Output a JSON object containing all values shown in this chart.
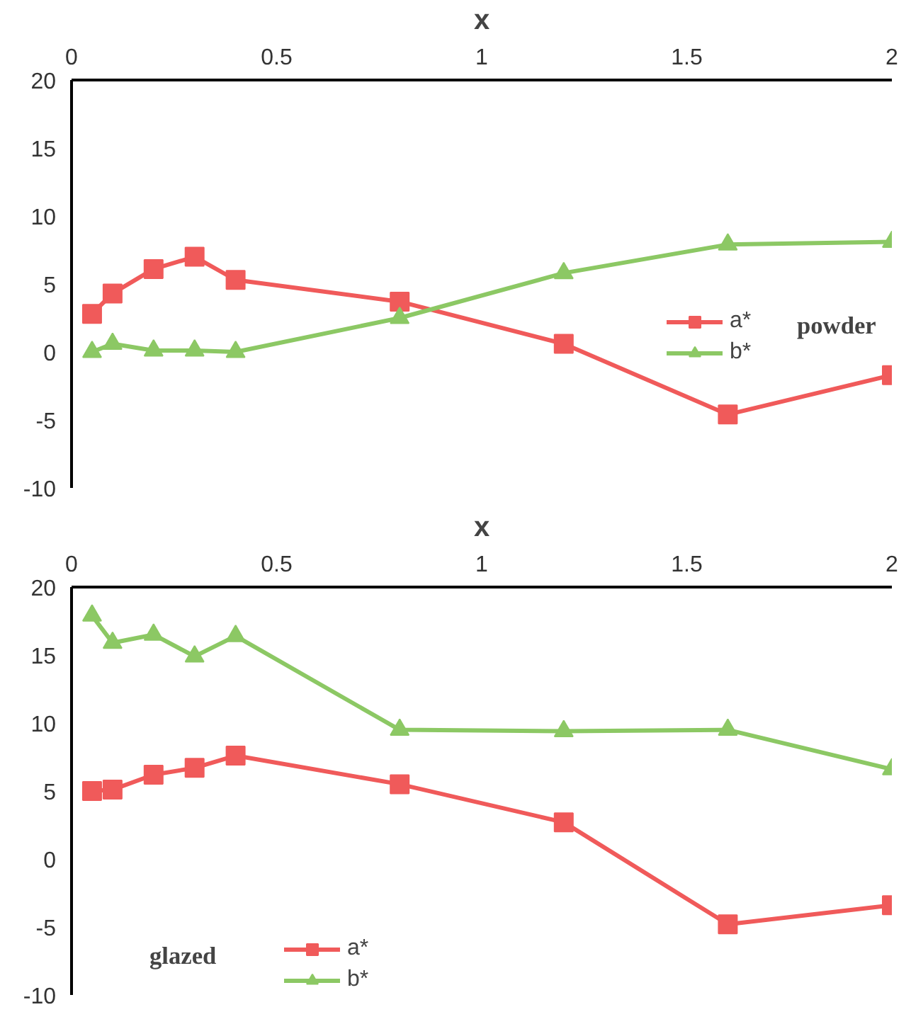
{
  "chart_data": [
    {
      "type": "line",
      "xlabel": "x",
      "x": [
        0.05,
        0.1,
        0.2,
        0.3,
        0.4,
        0.8,
        1.2,
        1.6,
        2.0
      ],
      "xlim": [
        0,
        2
      ],
      "xticks": [
        0,
        0.5,
        1,
        1.5,
        2
      ],
      "ylim": [
        -10,
        20
      ],
      "yticks": [
        -10,
        -5,
        0,
        5,
        10,
        15,
        20
      ],
      "series": [
        {
          "name": "a*",
          "color": "#f05a5a",
          "marker": "square",
          "values": [
            2.8,
            4.3,
            6.1,
            7.0,
            5.3,
            3.7,
            0.6,
            -4.6,
            -1.7
          ]
        },
        {
          "name": "b*",
          "color": "#8cc864",
          "marker": "triangle",
          "values": [
            0.0,
            0.6,
            0.1,
            0.1,
            0.0,
            2.5,
            5.8,
            7.9,
            8.1
          ]
        }
      ],
      "grid": false,
      "legend": "right",
      "annotations": [
        "powder"
      ]
    },
    {
      "type": "line",
      "xlabel": "x",
      "x": [
        0.05,
        0.1,
        0.2,
        0.3,
        0.4,
        0.8,
        1.2,
        1.6,
        2.0
      ],
      "xlim": [
        0,
        2
      ],
      "xticks": [
        0,
        0.5,
        1,
        1.5,
        2
      ],
      "ylim": [
        -10,
        20
      ],
      "yticks": [
        -10,
        -5,
        0,
        5,
        10,
        15,
        20
      ],
      "series": [
        {
          "name": "a*",
          "color": "#f05a5a",
          "marker": "square",
          "values": [
            5.0,
            5.1,
            6.2,
            6.7,
            7.6,
            5.5,
            2.7,
            -4.8,
            -3.4
          ]
        },
        {
          "name": "b*",
          "color": "#8cc864",
          "marker": "triangle",
          "values": [
            17.9,
            15.9,
            16.5,
            14.9,
            16.4,
            9.5,
            9.4,
            9.5,
            6.6
          ]
        }
      ],
      "grid": false,
      "legend": "bottom left",
      "annotations": [
        "glazed"
      ]
    }
  ]
}
